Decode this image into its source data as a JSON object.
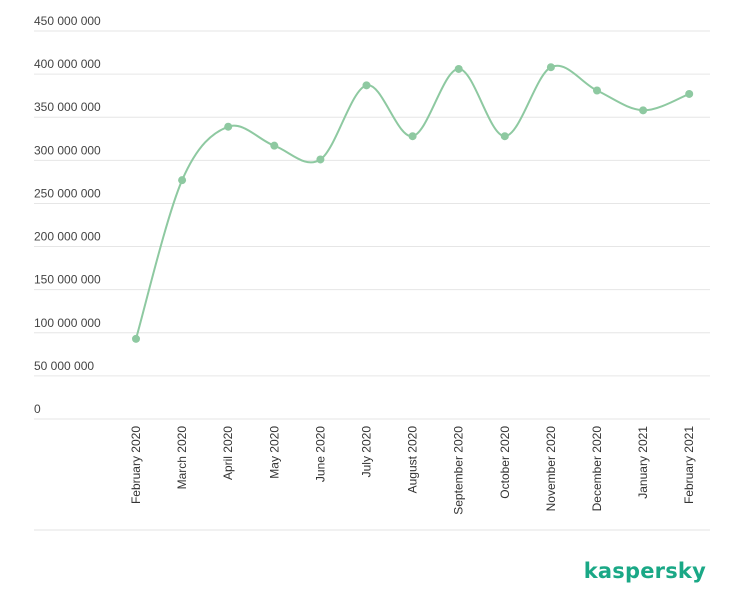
{
  "chart_data": {
    "type": "line",
    "categories": [
      "February 2020",
      "March 2020",
      "April 2020",
      "May 2020",
      "June 2020",
      "July 2020",
      "August 2020",
      "September 2020",
      "October 2020",
      "November 2020",
      "December 2020",
      "January 2021",
      "February 2021"
    ],
    "values": [
      93000000,
      277000000,
      339000000,
      317000000,
      301000000,
      387000000,
      328000000,
      406000000,
      328000000,
      408000000,
      381000000,
      358000000,
      377000000
    ],
    "yticks": [
      "0",
      "50 000 000",
      "100 000 000",
      "150 000 000",
      "200 000 000",
      "250 000 000",
      "300 000 000",
      "350 000 000",
      "400 000 000",
      "450 000 000"
    ],
    "ylim": [
      0,
      450000000
    ],
    "grid": true,
    "line_style": "smooth",
    "series_color": "#8ec9a1"
  },
  "brand": {
    "logo_text": "kaspersky",
    "color": "#1aa886"
  }
}
